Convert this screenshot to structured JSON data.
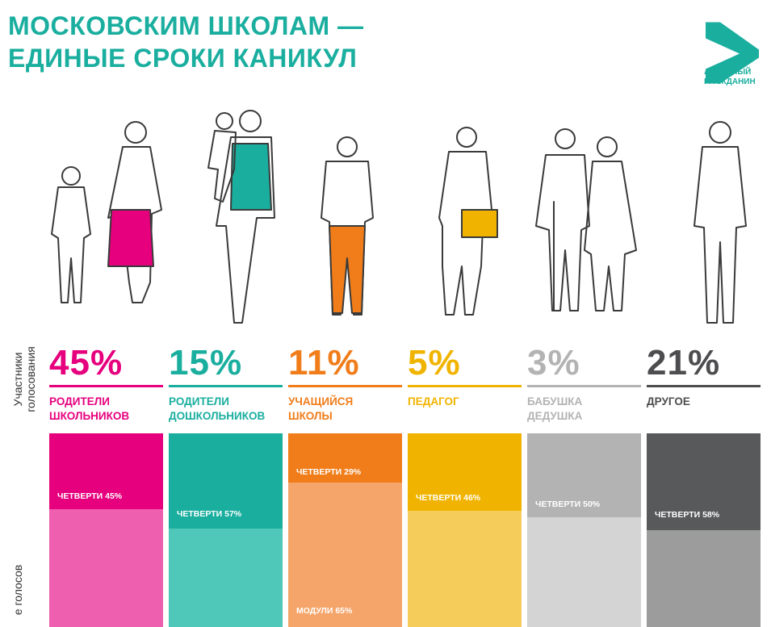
{
  "header": {
    "title_line1": "МОСКОВСКИМ ШКОЛАМ —",
    "title_line2": "ЕДИНЫЕ СРОКИ КАНИКУЛ",
    "logo_line1": "АКТИВНЫЙ",
    "logo_line2": "ГРАЖДАНИН",
    "brand_color": "#1aae9f"
  },
  "side_labels": {
    "participants_line1": "Участники",
    "participants_line2": "голосования",
    "votes_partial": "е голосов"
  },
  "chart_data": [
    {
      "type": "bar",
      "title": "Участники голосования",
      "categories": [
        "РОДИТЕЛИ ШКОЛЬНИКОВ",
        "РОДИТЕЛИ ДОШКОЛЬНИКОВ",
        "УЧАЩИЙСЯ ШКОЛЫ",
        "ПЕДАГОГ",
        "БАБУШКА ДЕДУШКА",
        "ДРУГОЕ"
      ],
      "values": [
        45,
        15,
        11,
        5,
        3,
        21
      ],
      "value_labels": [
        "45%",
        "15%",
        "11%",
        "5%",
        "3%",
        "21%"
      ],
      "colors": [
        "#e6007e",
        "#1aae9f",
        "#f07d1a",
        "#f0b400",
        "#b3b3b3",
        "#4d4d4f"
      ]
    },
    {
      "type": "bar",
      "title": "",
      "categories": [
        "РОДИТЕЛИ ШКОЛЬНИКОВ",
        "РОДИТЕЛИ ДОШКОЛЬНИКОВ",
        "УЧАЩИЙСЯ ШКОЛЫ",
        "ПЕДАГОГ",
        "БАБУШКА ДЕДУШКА",
        "ДРУГОЕ"
      ],
      "series": [
        {
          "name": "ЧЕТВЕРТИ",
          "values": [
            45,
            57,
            29,
            46,
            50,
            58
          ]
        },
        {
          "name": "МОДУЛИ",
          "values": [
            null,
            null,
            65,
            null,
            null,
            null
          ]
        }
      ],
      "segment_labels": {
        "quarters": [
          "ЧЕТВЕРТИ 45%",
          "ЧЕТВЕРТИ 57%",
          "ЧЕТВЕРТИ 29%",
          "ЧЕТВЕРТИ 46%",
          "ЧЕТВЕРТИ 50%",
          "ЧЕТВЕРТИ 58%"
        ],
        "modules": [
          "",
          "",
          "МОДУЛИ 65%",
          "",
          "",
          ""
        ]
      },
      "colors_dark": [
        "#e6007e",
        "#1aae9f",
        "#f07d1a",
        "#f0b400",
        "#b3b3b3",
        "#58595b"
      ],
      "colors_light": [
        "#ee5fb0",
        "#4fc8b9",
        "#f5a56a",
        "#f5cc5a",
        "#d4d4d4",
        "#9c9c9c"
      ]
    }
  ],
  "icons": [
    "logo-a-icon",
    "parents-schoolchildren-figure",
    "parents-preschoolers-figure",
    "student-figure",
    "teacher-figure",
    "grandparents-figure",
    "other-person-figure"
  ]
}
